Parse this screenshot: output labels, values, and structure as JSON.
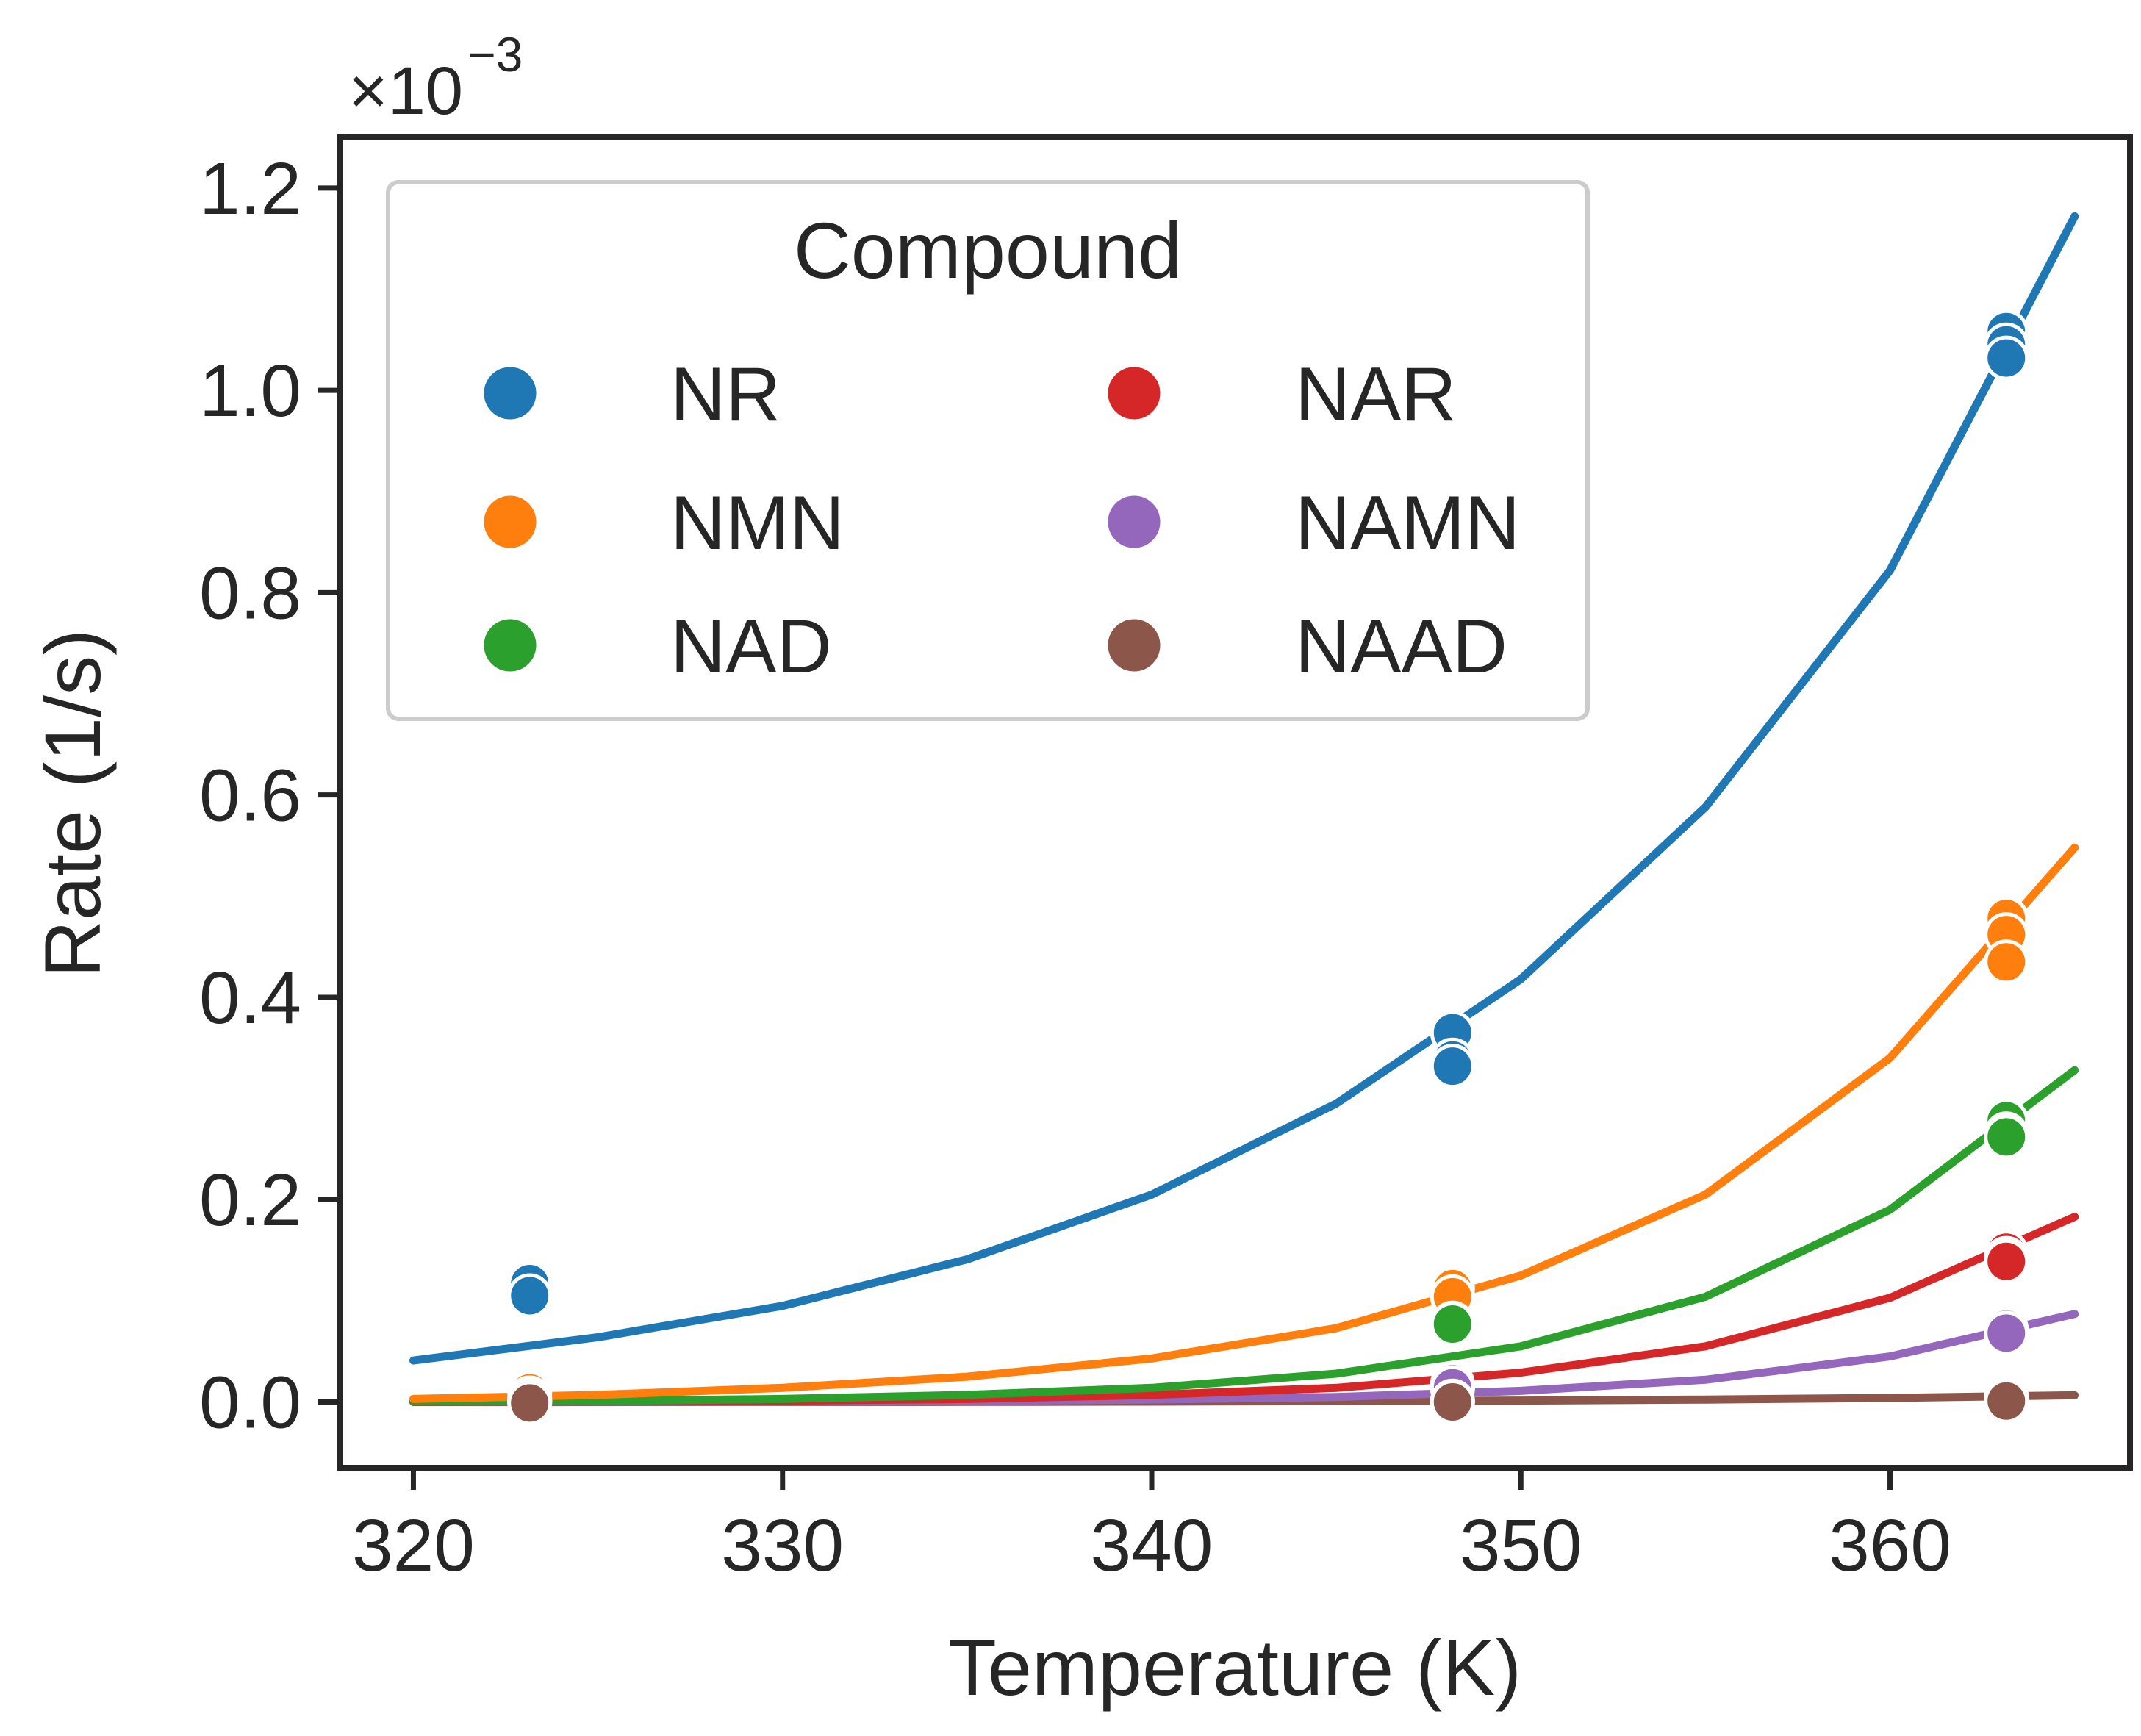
{
  "chart_data": {
    "type": "scatter",
    "title": "",
    "xlabel": "Temperature (K)",
    "ylabel": "Rate (1/s)",
    "y_scale_label": {
      "base": "×10",
      "exponent": "−3"
    },
    "xlim": [
      318,
      366.5
    ],
    "ylim": [
      -0.065,
      1.25
    ],
    "xticks": [
      320,
      330,
      340,
      350,
      360
    ],
    "xtick_labels": [
      "320",
      "330",
      "340",
      "350",
      "360"
    ],
    "yticks": [
      0.0,
      0.2,
      0.4,
      0.6,
      0.8,
      1.0,
      1.2
    ],
    "ytick_labels": [
      "0.0",
      "0.2",
      "0.4",
      "0.6",
      "0.8",
      "1.0",
      "1.2"
    ],
    "grid": false,
    "legend": {
      "title": "Compound",
      "placement": "top-left",
      "columns": 2
    },
    "fit_range": [
      320,
      365
    ],
    "series": [
      {
        "name": "NR",
        "color": "#1f77b4",
        "points": [
          [
            323.15,
            0.117
          ],
          [
            323.15,
            0.105
          ],
          [
            348.15,
            0.365
          ],
          [
            348.15,
            0.338
          ],
          [
            348.15,
            0.332
          ],
          [
            363.15,
            1.058
          ],
          [
            363.15,
            1.045
          ],
          [
            363.15,
            1.032
          ]
        ],
        "fit": [
          [
            320,
            0.041
          ],
          [
            325,
            0.064
          ],
          [
            330,
            0.095
          ],
          [
            335,
            0.141
          ],
          [
            340,
            0.205
          ],
          [
            345,
            0.295
          ],
          [
            350,
            0.418
          ],
          [
            355,
            0.588
          ],
          [
            360,
            0.822
          ],
          [
            365,
            1.172
          ]
        ]
      },
      {
        "name": "NMN",
        "color": "#ff7f0e",
        "points": [
          [
            323.15,
            0.012
          ],
          [
            323.15,
            0.009
          ],
          [
            348.15,
            0.112
          ],
          [
            348.15,
            0.104
          ],
          [
            363.15,
            0.478
          ],
          [
            363.15,
            0.462
          ],
          [
            363.15,
            0.435
          ]
        ],
        "fit": [
          [
            320,
            0.003
          ],
          [
            325,
            0.007
          ],
          [
            330,
            0.014
          ],
          [
            335,
            0.025
          ],
          [
            340,
            0.043
          ],
          [
            345,
            0.073
          ],
          [
            350,
            0.125
          ],
          [
            355,
            0.205
          ],
          [
            360,
            0.34
          ],
          [
            365,
            0.548
          ]
        ]
      },
      {
        "name": "NAD",
        "color": "#2ca02c",
        "points": [
          [
            323.15,
            0.004
          ],
          [
            323.15,
            0.002
          ],
          [
            348.15,
            0.078
          ],
          [
            348.15,
            0.077
          ],
          [
            363.15,
            0.278
          ],
          [
            363.15,
            0.265
          ],
          [
            363.15,
            0.262
          ]
        ],
        "fit": [
          [
            320,
            0.0005
          ],
          [
            325,
            0.001
          ],
          [
            330,
            0.003
          ],
          [
            335,
            0.007
          ],
          [
            340,
            0.014
          ],
          [
            345,
            0.028
          ],
          [
            350,
            0.055
          ],
          [
            355,
            0.104
          ],
          [
            360,
            0.19
          ],
          [
            365,
            0.328
          ]
        ]
      },
      {
        "name": "NAR",
        "color": "#d62728",
        "points": [
          [
            323.15,
            0.001
          ],
          [
            348.15,
            0.015
          ],
          [
            348.15,
            0.013
          ],
          [
            363.15,
            0.148
          ],
          [
            363.15,
            0.142
          ],
          [
            363.15,
            0.139
          ]
        ],
        "fit": [
          [
            320,
            0.0002
          ],
          [
            325,
            0.0005
          ],
          [
            330,
            0.0013
          ],
          [
            335,
            0.003
          ],
          [
            340,
            0.007
          ],
          [
            345,
            0.014
          ],
          [
            350,
            0.029
          ],
          [
            355,
            0.055
          ],
          [
            360,
            0.103
          ],
          [
            365,
            0.183
          ]
        ]
      },
      {
        "name": "NAMN",
        "color": "#9467bd",
        "points": [
          [
            323.15,
            0.001
          ],
          [
            348.15,
            0.018
          ],
          [
            348.15,
            0.014
          ],
          [
            363.15,
            0.072
          ],
          [
            363.15,
            0.068
          ]
        ],
        "fit": [
          [
            320,
            0.0001
          ],
          [
            325,
            0.0002
          ],
          [
            330,
            0.0005
          ],
          [
            335,
            0.001
          ],
          [
            340,
            0.0025
          ],
          [
            345,
            0.005
          ],
          [
            350,
            0.011
          ],
          [
            355,
            0.022
          ],
          [
            360,
            0.045
          ],
          [
            365,
            0.087
          ]
        ]
      },
      {
        "name": "NAAD",
        "color": "#8c564b",
        "points": [
          [
            323.15,
            0.0
          ],
          [
            323.15,
            -0.001
          ],
          [
            348.15,
            0.001
          ],
          [
            348.15,
            0.0
          ],
          [
            363.15,
            0.006
          ],
          [
            363.15,
            0.003
          ],
          [
            363.15,
            0.001
          ]
        ],
        "fit": [
          [
            320,
            0.0
          ],
          [
            325,
            0.0
          ],
          [
            330,
            0.0001
          ],
          [
            335,
            0.0002
          ],
          [
            340,
            0.0004
          ],
          [
            345,
            0.0008
          ],
          [
            350,
            0.0014
          ],
          [
            355,
            0.0024
          ],
          [
            360,
            0.004
          ],
          [
            365,
            0.0066
          ]
        ]
      }
    ]
  }
}
